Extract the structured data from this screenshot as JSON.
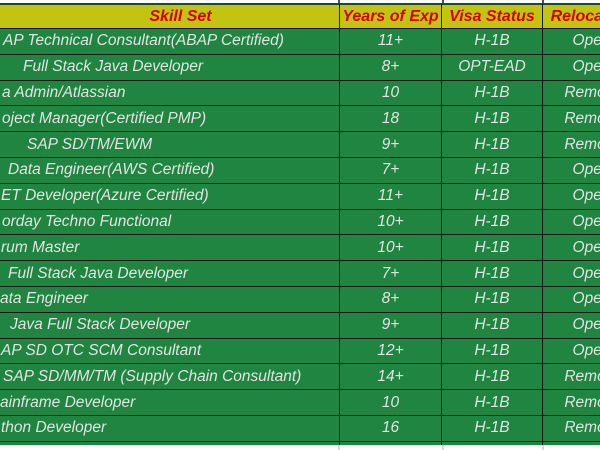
{
  "colors": {
    "header_bg": "#c3c40f",
    "header_text": "#d40000",
    "cell_bg": "#1f8540",
    "cell_text": "#e3e3e3",
    "grid_border": "#131613"
  },
  "sheet": {
    "header": {
      "skill_set": "Skill Set",
      "years_of_exp": "Years of Exp",
      "visa_status": "Visa Status",
      "relocation": "Relocation"
    },
    "rows": [
      {
        "skill": "AP Technical Consultant(ABAP Certified)",
        "indent": 3,
        "years": "11+",
        "visa": "H-1B",
        "reloc": "Open"
      },
      {
        "skill": "Full Stack Java Developer",
        "indent": 23,
        "years": "8+",
        "visa": "OPT-EAD",
        "reloc": "Open"
      },
      {
        "skill": "a Admin/Atlassian",
        "indent": 2,
        "years": "10",
        "visa": "H-1B",
        "reloc": "Remote"
      },
      {
        "skill": "oject Manager(Certified PMP)",
        "indent": 2,
        "years": "18",
        "visa": "H-1B",
        "reloc": "Remote"
      },
      {
        "skill": "SAP SD/TM/EWM",
        "indent": 27,
        "years": "9+",
        "visa": "H-1B",
        "reloc": "Remote"
      },
      {
        "skill": "Data Engineer(AWS Certified)",
        "indent": 8,
        "years": "7+",
        "visa": "H-1B",
        "reloc": "Open"
      },
      {
        "skill": "ET Developer(Azure Certified)",
        "indent": 1,
        "years": "11+",
        "visa": "H-1B",
        "reloc": "Open"
      },
      {
        "skill": "orday Techno Functional",
        "indent": 2,
        "years": "10+",
        "visa": "H-1B",
        "reloc": "Open"
      },
      {
        "skill": "rum Master",
        "indent": 1,
        "years": "10+",
        "visa": "H-1B",
        "reloc": "Open"
      },
      {
        "skill": "Full Stack Java Developer",
        "indent": 8,
        "years": "7+",
        "visa": "H-1B",
        "reloc": "Open"
      },
      {
        "skill": "ata Engineer",
        "indent": 0,
        "years": "8+",
        "visa": "H-1B",
        "reloc": "Open"
      },
      {
        "skill": "Java Full Stack Developer",
        "indent": 10,
        "years": "9+",
        "visa": "H-1B",
        "reloc": "Open"
      },
      {
        "skill": "AP SD OTC SCM Consultant",
        "indent": 1,
        "years": "12+",
        "visa": "H-1B",
        "reloc": "Open"
      },
      {
        "skill": "SAP SD/MM/TM (Supply Chain Consultant)",
        "indent": 3,
        "years": "14+",
        "visa": "H-1B",
        "reloc": "Remote"
      },
      {
        "skill": "ainframe Developer",
        "indent": 0,
        "years": "10",
        "visa": "H-1B",
        "reloc": "Remote"
      },
      {
        "skill": "thon Developer",
        "indent": 1,
        "years": "16",
        "visa": "H-1B",
        "reloc": "Remote"
      }
    ]
  }
}
